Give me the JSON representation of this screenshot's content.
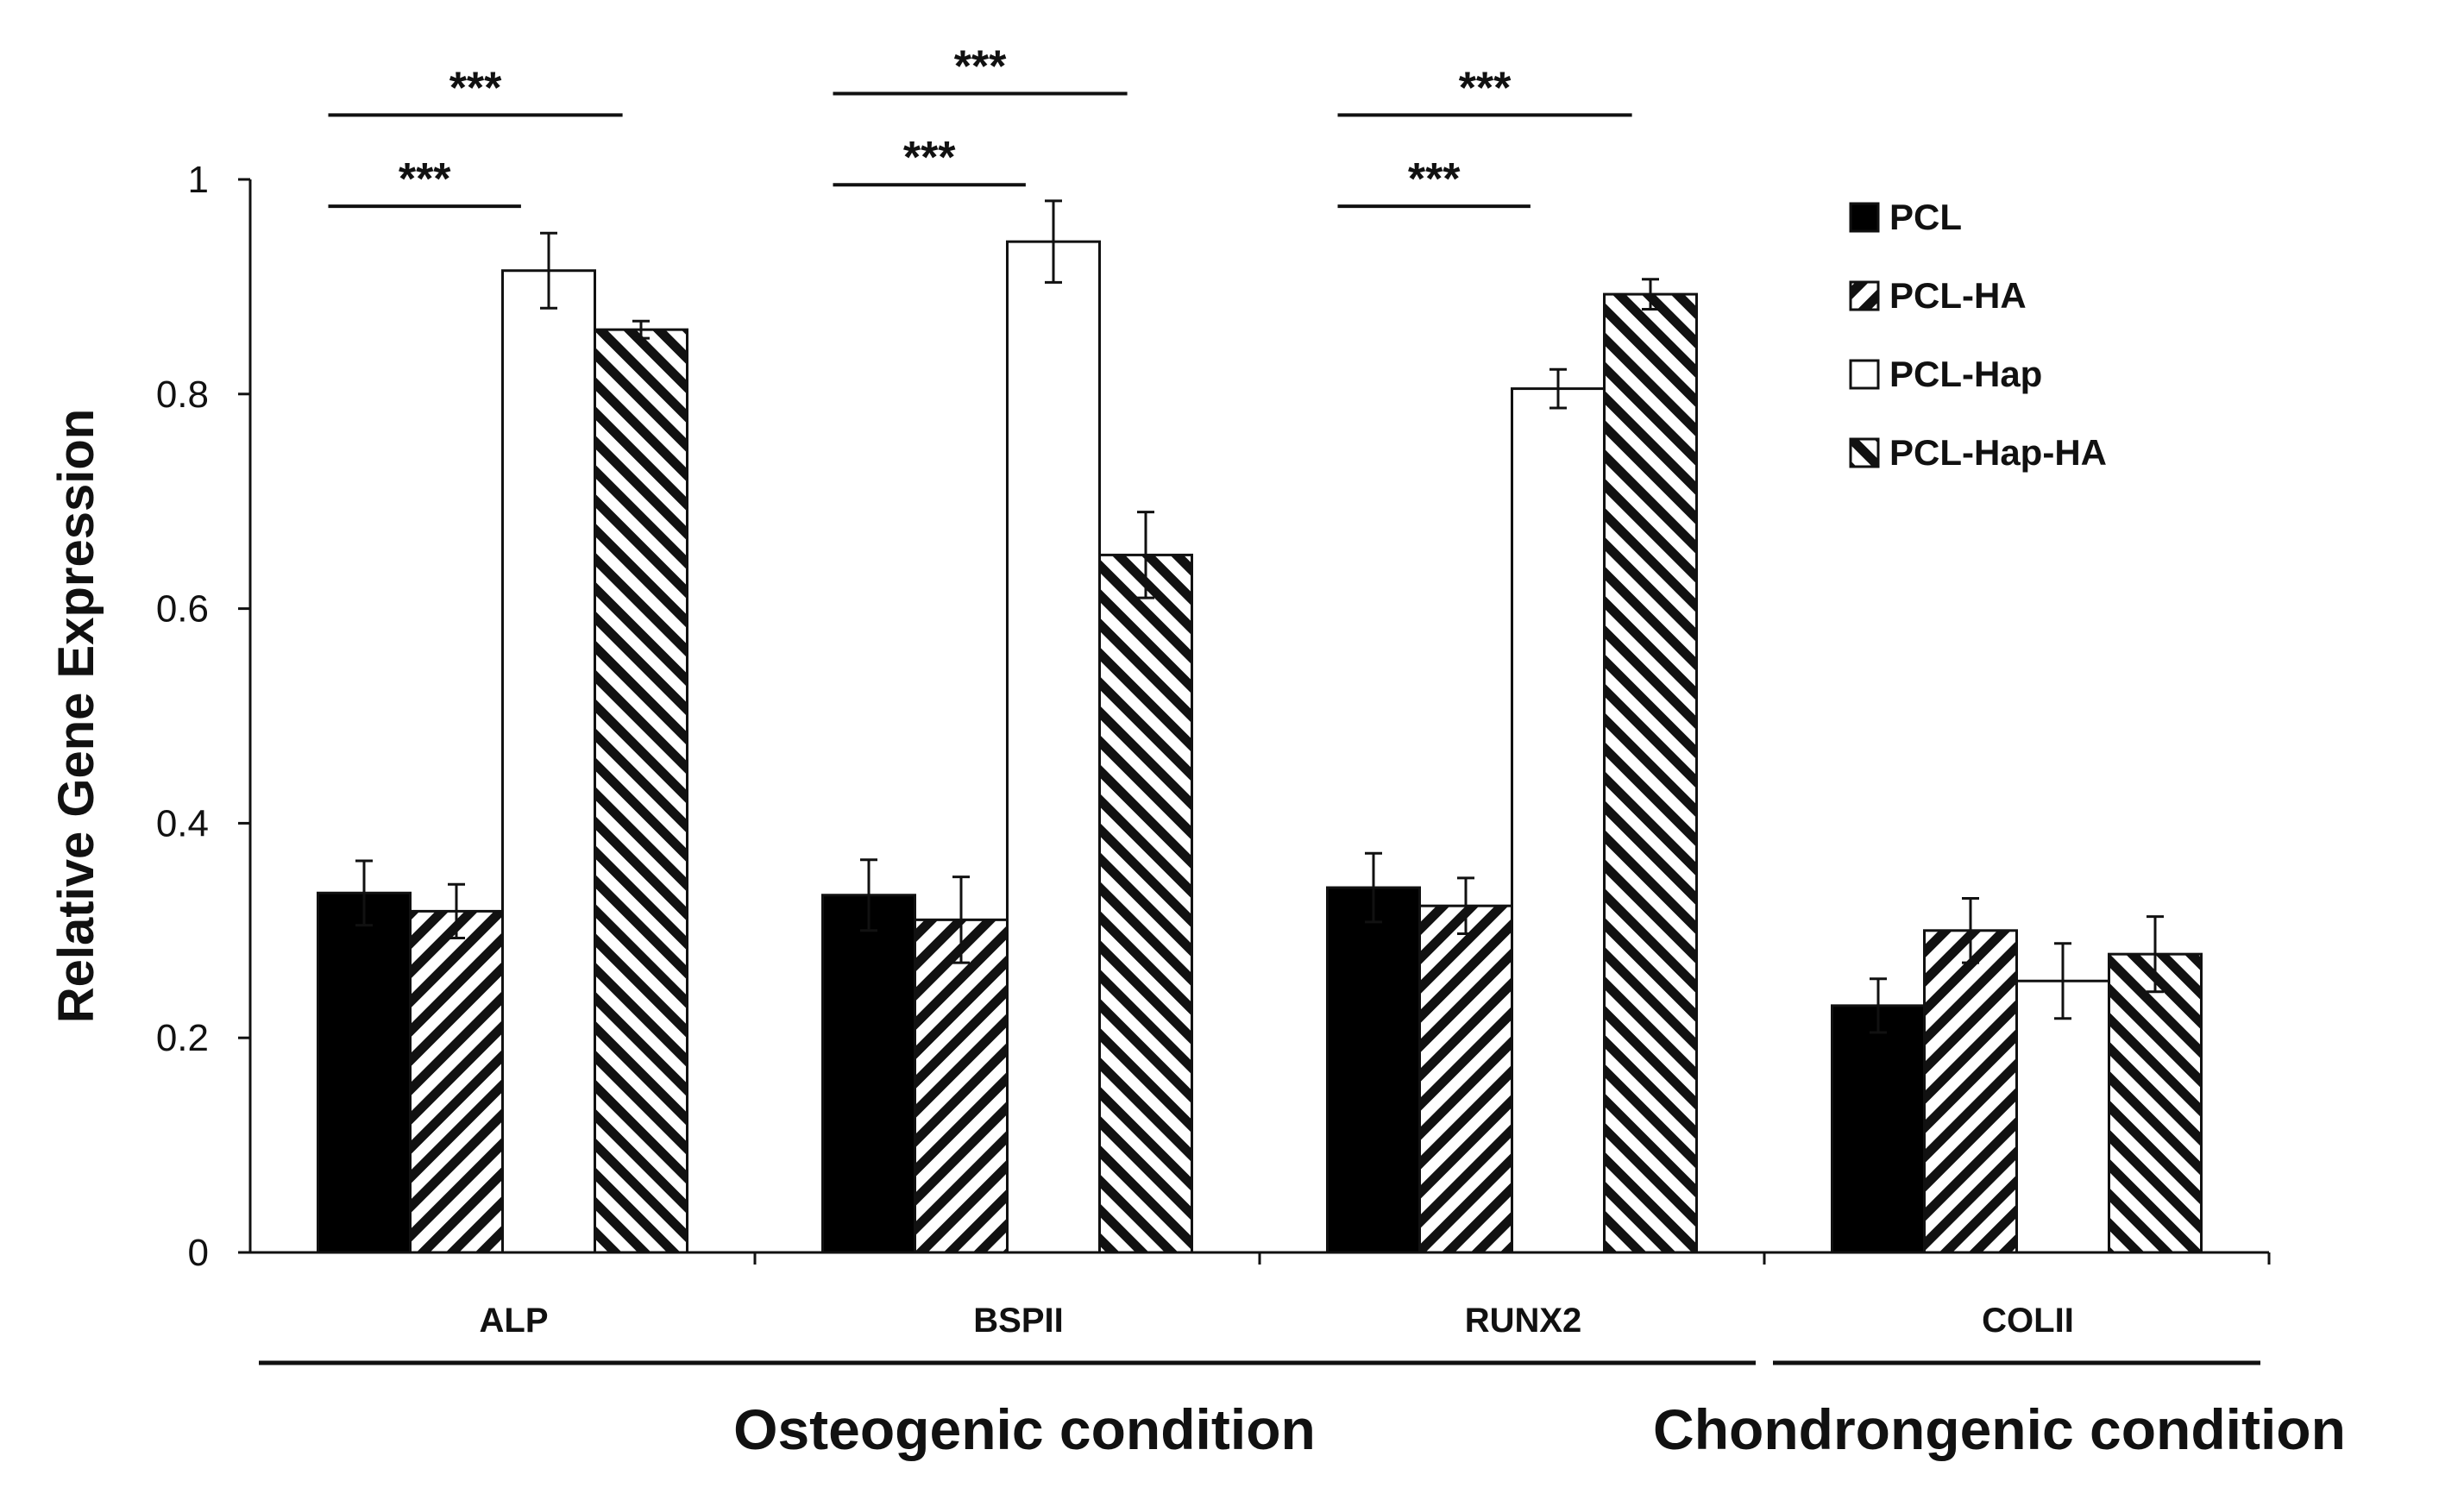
{
  "chart_data": {
    "type": "bar",
    "title": "",
    "xlabel": "",
    "ylabel": "Relative Gene Expression",
    "ylim": [
      0,
      1
    ],
    "yticks": [
      "0",
      "0.2",
      "0.4",
      "0.6",
      "0.8",
      "1"
    ],
    "grid": false,
    "legend_position": "top-right",
    "categories": [
      "ALP",
      "BSPII",
      "RUNX2",
      "COLII"
    ],
    "series": [
      {
        "name": "PCL",
        "pattern": "solid-black",
        "values": [
          0.335,
          0.333,
          0.34,
          0.23
        ],
        "errors": [
          0.03,
          0.033,
          0.032,
          0.025
        ]
      },
      {
        "name": "PCL-HA",
        "pattern": "diagonal-hatch-right",
        "values": [
          0.318,
          0.31,
          0.323,
          0.3
        ],
        "errors": [
          0.025,
          0.04,
          0.026,
          0.03
        ]
      },
      {
        "name": "PCL-Hap",
        "pattern": "white",
        "values": [
          0.915,
          0.942,
          0.805,
          0.253
        ],
        "errors": [
          0.035,
          0.038,
          0.018,
          0.035
        ]
      },
      {
        "name": "PCL-Hap-HA",
        "pattern": "diagonal-hatch-left",
        "values": [
          0.86,
          0.65,
          0.893,
          0.278
        ],
        "errors": [
          0.008,
          0.04,
          0.014,
          0.035
        ]
      }
    ],
    "significance": [
      {
        "category": "ALP",
        "from": "PCL",
        "to": "PCL-Hap",
        "label": "***"
      },
      {
        "category": "ALP",
        "from": "PCL",
        "to": "PCL-Hap-HA",
        "label": "***"
      },
      {
        "category": "BSPII",
        "from": "PCL",
        "to": "PCL-Hap",
        "label": "***"
      },
      {
        "category": "BSPII",
        "from": "PCL",
        "to": "PCL-Hap-HA",
        "label": "***"
      },
      {
        "category": "RUNX2",
        "from": "PCL",
        "to": "PCL-Hap",
        "label": "***"
      },
      {
        "category": "RUNX2",
        "from": "PCL",
        "to": "PCL-Hap-HA",
        "label": "***"
      }
    ],
    "condition_groups": [
      {
        "label": "Osteogenic condition",
        "categories": [
          "ALP",
          "BSPII",
          "RUNX2"
        ]
      },
      {
        "label": "Chondrongenic condition",
        "categories": [
          "COLII"
        ]
      }
    ]
  }
}
